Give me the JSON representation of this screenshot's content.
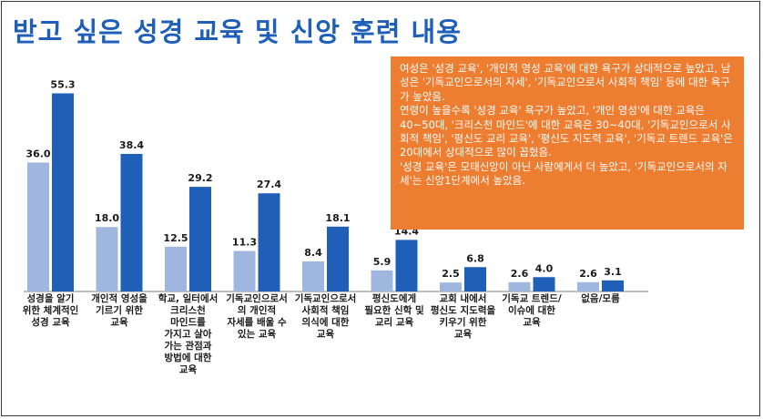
{
  "title": "받고 싶은 성경 교육 및 신앙 훈련 내용",
  "colors": {
    "title": "#1f5fb8",
    "series1": "#9fb7de",
    "series2": "#1f5fb8",
    "note_bg": "#ed7d31"
  },
  "note": {
    "lines": [
      "여성은 '성경 교육', '개인적 영성 교육'에 대한 욕구가 상대적으로 높았고, 남성은 '기독교인으로서의 자세', '기독교인으로서 사회적 책임' 등에 대한 욕구가 높았음.",
      "연령이 높을수록 '성경 교육' 욕구가 높았고, '개인 영성'에 대한 교육은 40~50대, '크리스천 마인드'에 대한 교육은 30~40대, '기독교인으로서 사회적 책임', '평신도 교리 교육', '평신도 지도력 교육', '기독교 트렌드 교육'은 20대에서 상대적으로 많이 꼽혔음.",
      "'성경 교육'은 모태신앙이 아닌 사람에게서 더 높았고, '기독교인으로서의 자세'는 신앙1단계에서 높았음."
    ]
  },
  "chart_data": {
    "type": "bar",
    "title": "받고 싶은 성경 교육 및 신앙 훈련 내용",
    "categories": [
      "성경을 알기 위한 체계적인 성경 교육",
      "개인적 영성을 기르기 위한 교육",
      "학교, 일터에서 크리스천 마인드를 가지고 살아가는 관점과 방법에 대한 교육",
      "기독교인으로서의 개인적 자세를 배울 수 있는 교육",
      "기독교인으로서 사회적 책임 의식에 대한 교육",
      "평신도에게 필요한 신학 및 교리 교육",
      "교회 내에서 평신도 지도력을 키우기 위한 교육",
      "기독교 트렌드/이슈에 대한 교육",
      "없음/모름"
    ],
    "label_lines": [
      [
        "성경을 알기",
        "위한 체계적인",
        "성경 교육"
      ],
      [
        "개인적 영성을",
        "기르기 위한",
        "교육"
      ],
      [
        "학교, 일터에서",
        "크리스천",
        "마인드를",
        "가지고 살아",
        "가는 관점과",
        "방법에 대한",
        "교육"
      ],
      [
        "기독교인으로서",
        "의 개인적",
        "자세를 배울 수",
        "있는 교육"
      ],
      [
        "기독교인으로서",
        "사회적 책임",
        "의식에 대한",
        "교육"
      ],
      [
        "평신도에게",
        "필요한 신학 및",
        "교리 교육"
      ],
      [
        "교회 내에서",
        "평신도 지도력을",
        "키우기 위한",
        "교육"
      ],
      [
        "기독교 트렌드/",
        "이슈에 대한",
        "교육"
      ],
      [
        "없음/모름"
      ]
    ],
    "series": [
      {
        "values": [
          36.0,
          18.0,
          12.5,
          11.3,
          8.4,
          5.9,
          2.5,
          2.6,
          2.6
        ]
      },
      {
        "values": [
          55.3,
          38.4,
          29.2,
          27.4,
          18.1,
          14.4,
          6.8,
          4.0,
          3.1
        ]
      }
    ],
    "value_format": "0.0",
    "ylim": [
      0,
      60
    ],
    "grid": false,
    "legend": "none"
  }
}
